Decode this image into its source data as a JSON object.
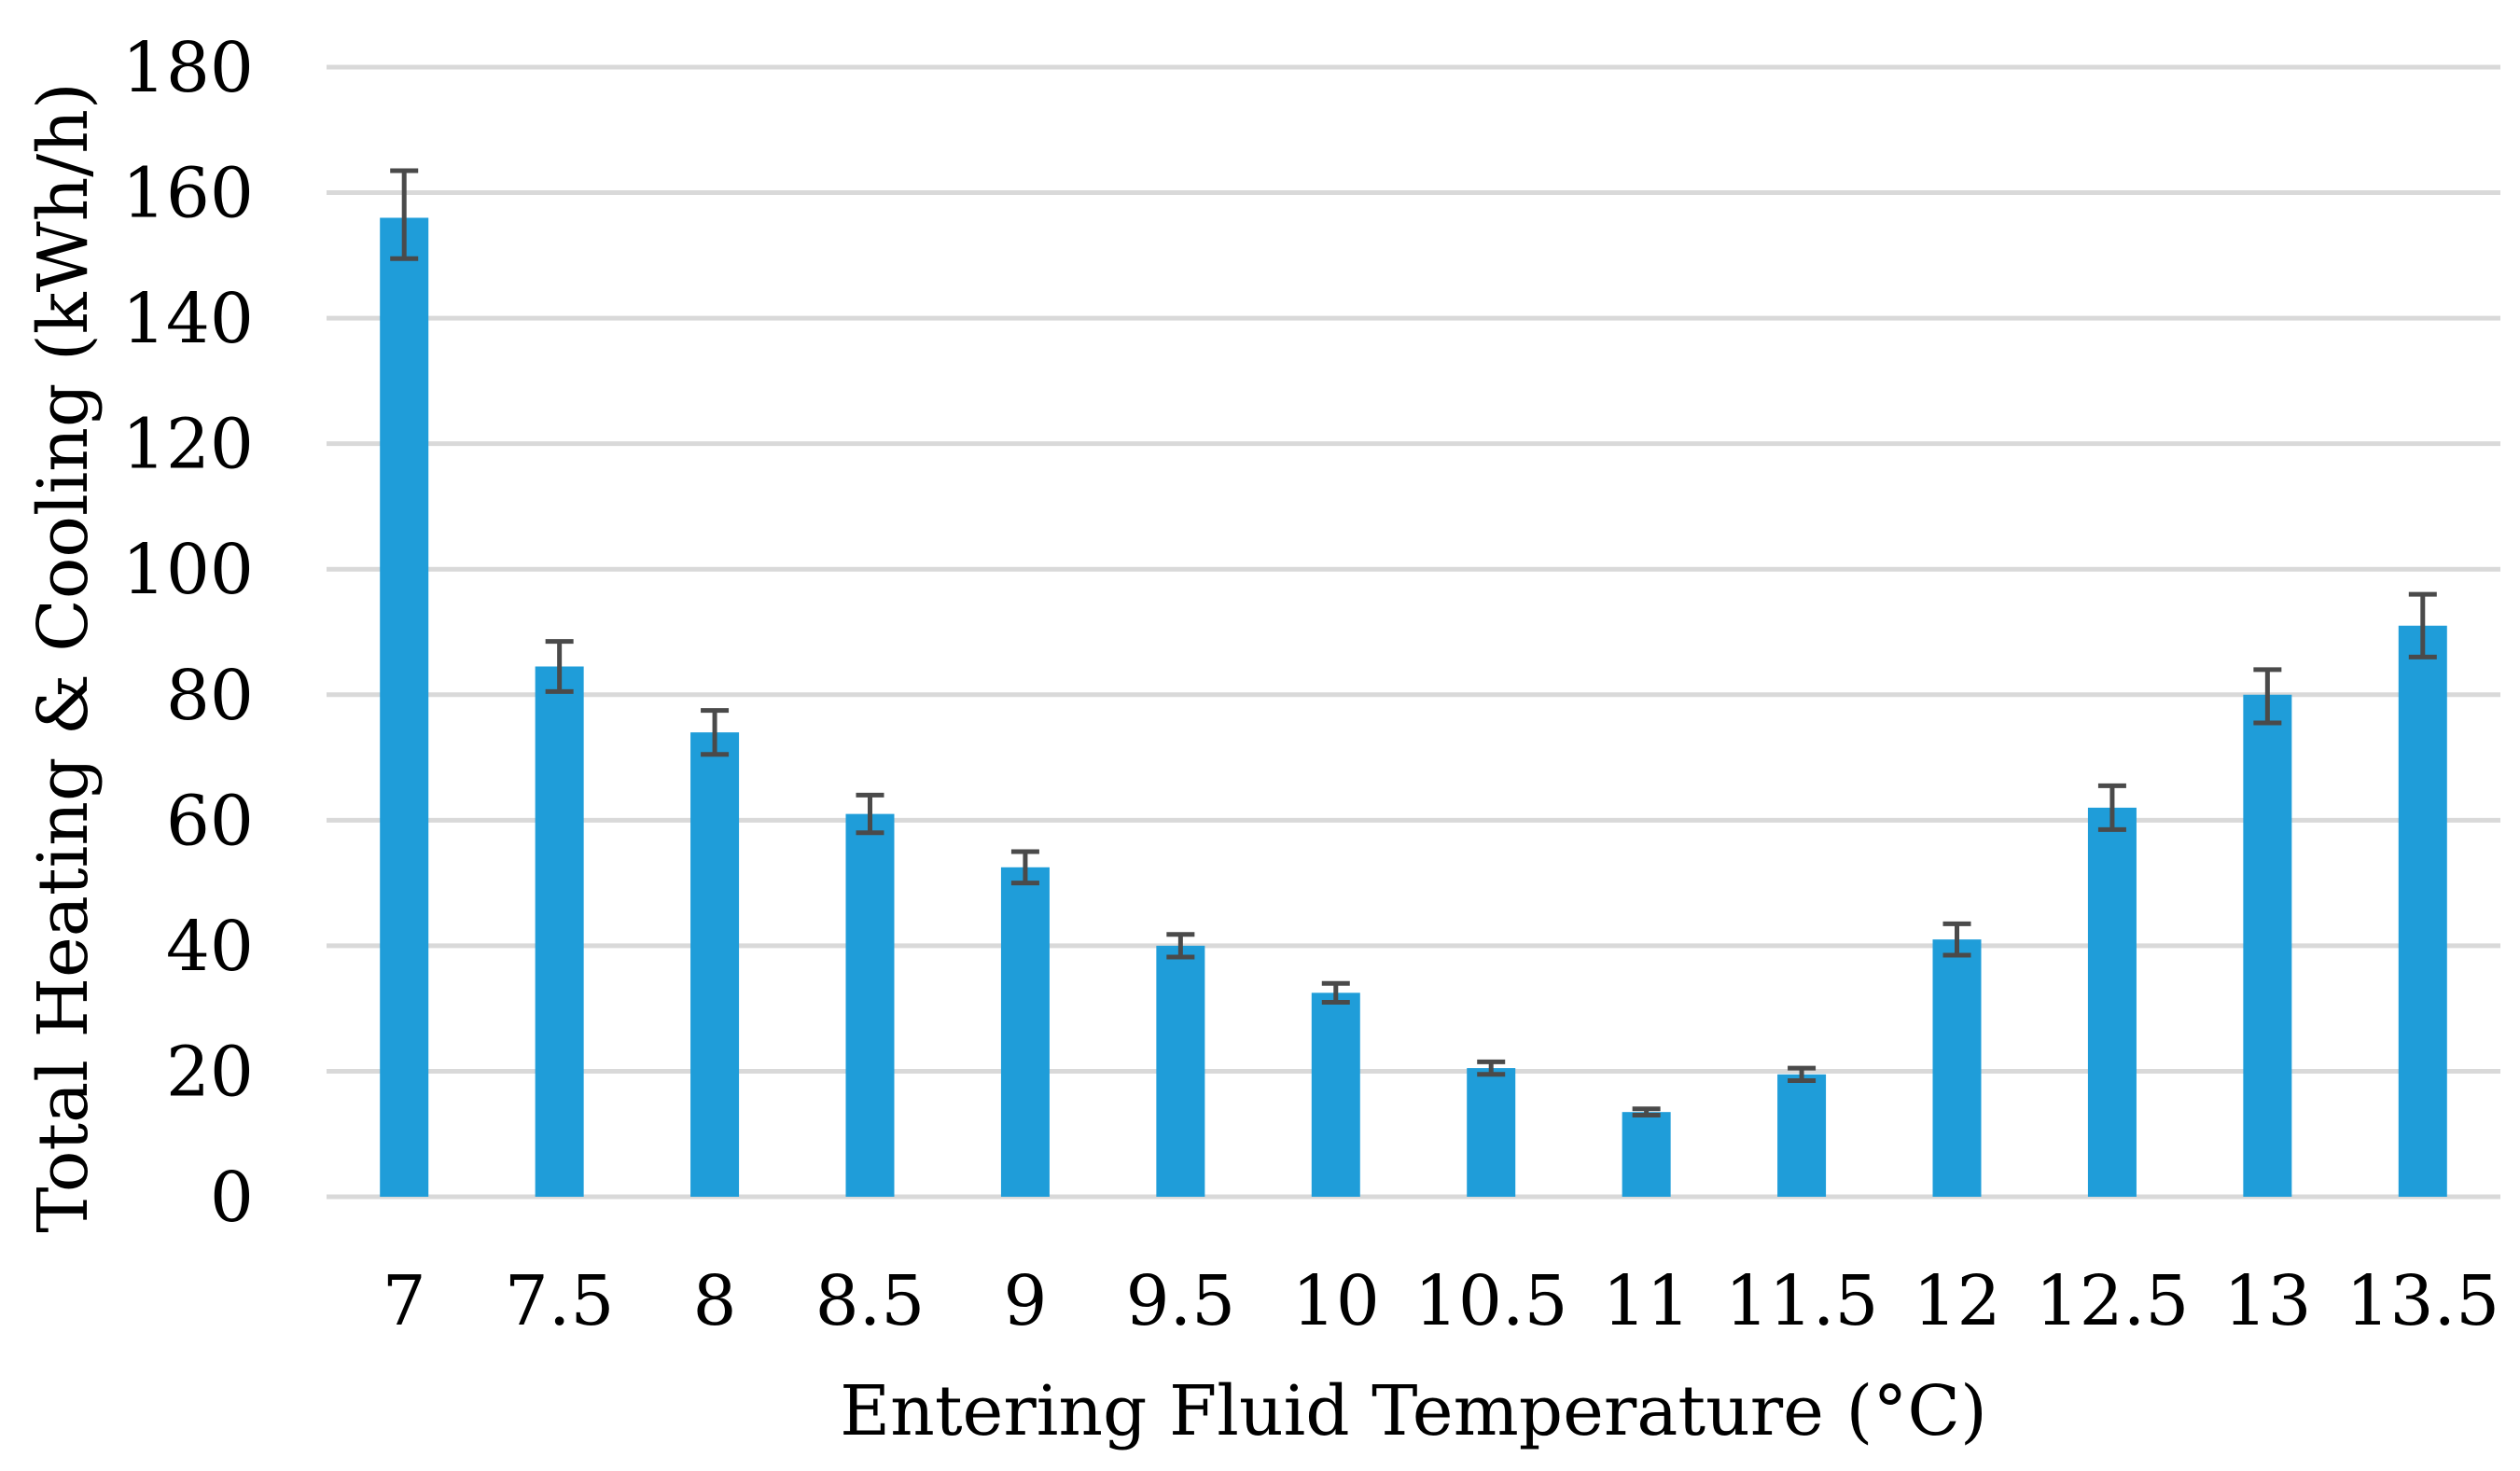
{
  "chart_data": {
    "type": "bar",
    "title": "",
    "xlabel": "Entering Fluid Temperature (°C)",
    "ylabel": "Total Heating & Cooling (kWh/h)",
    "categories": [
      "7",
      "7.5",
      "8",
      "8.5",
      "9",
      "9.5",
      "10",
      "10.5",
      "11",
      "11.5",
      "12",
      "12.5",
      "13",
      "13.5"
    ],
    "values": [
      156,
      84.5,
      74,
      61,
      52.5,
      40,
      32.5,
      20.5,
      13.5,
      19.5,
      41,
      62,
      80,
      91
    ],
    "error_plus": [
      7.5,
      4,
      3.5,
      3,
      2.5,
      1.8,
      1.5,
      1,
      0.5,
      1,
      2.5,
      3.5,
      4,
      5
    ],
    "error_minus": [
      6.5,
      4,
      3.5,
      3,
      2.5,
      1.8,
      1.5,
      1,
      0.5,
      1,
      2.5,
      3.5,
      4.5,
      5
    ],
    "ylim": [
      0,
      180
    ],
    "yticks": [
      "0",
      "20",
      "40",
      "60",
      "80",
      "100",
      "120",
      "140",
      "160",
      "180"
    ],
    "grid": true,
    "legend": "none",
    "colors": {
      "bar": "#1f9dd9",
      "error_bar": "#4a4a4a",
      "grid": "#d9d9d9"
    }
  }
}
